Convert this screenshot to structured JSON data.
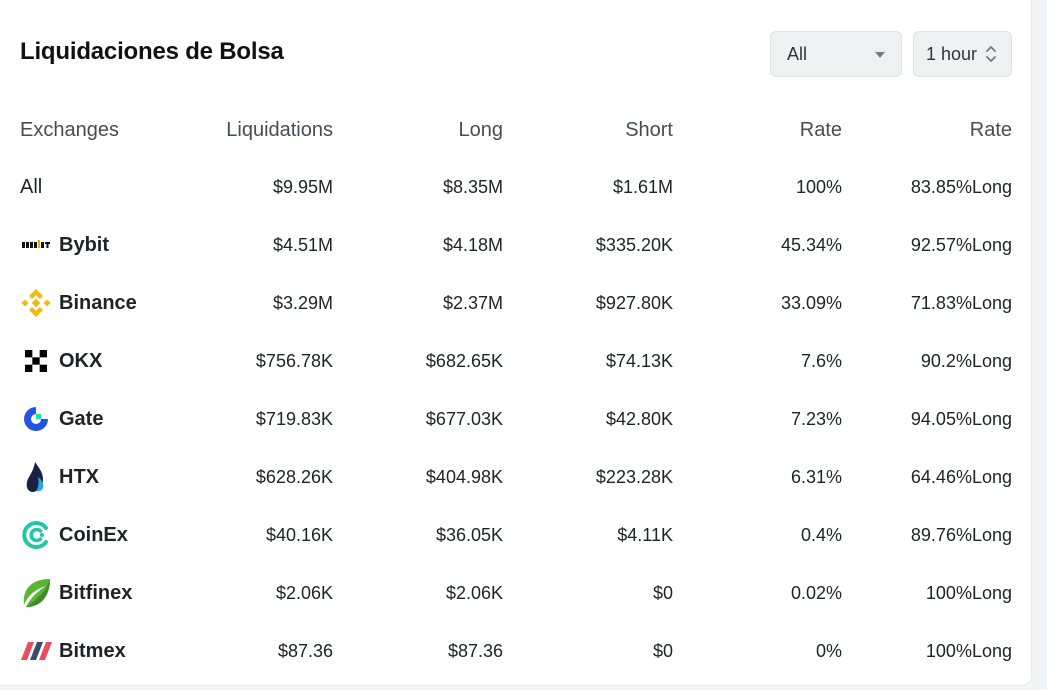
{
  "header": {
    "title": "Liquidaciones de Bolsa",
    "exchange_filter": "All",
    "period_filter": "1 hour"
  },
  "table": {
    "columns": [
      "Exchanges",
      "Liquidations",
      "Long",
      "Short",
      "Rate",
      "Rate"
    ],
    "rows": [
      {
        "exchange": "All",
        "icon": "",
        "liquidations": "$9.95M",
        "long": "$8.35M",
        "short": "$1.61M",
        "rate": "100%",
        "long_rate": "83.85%Long"
      },
      {
        "exchange": "Bybit",
        "icon": "bybit-logo-icon",
        "liquidations": "$4.51M",
        "long": "$4.18M",
        "short": "$335.20K",
        "rate": "45.34%",
        "long_rate": "92.57%Long"
      },
      {
        "exchange": "Binance",
        "icon": "binance-logo-icon",
        "liquidations": "$3.29M",
        "long": "$2.37M",
        "short": "$927.80K",
        "rate": "33.09%",
        "long_rate": "71.83%Long"
      },
      {
        "exchange": "OKX",
        "icon": "okx-logo-icon",
        "liquidations": "$756.78K",
        "long": "$682.65K",
        "short": "$74.13K",
        "rate": "7.6%",
        "long_rate": "90.2%Long"
      },
      {
        "exchange": "Gate",
        "icon": "gate-logo-icon",
        "liquidations": "$719.83K",
        "long": "$677.03K",
        "short": "$42.80K",
        "rate": "7.23%",
        "long_rate": "94.05%Long"
      },
      {
        "exchange": "HTX",
        "icon": "htx-logo-icon",
        "liquidations": "$628.26K",
        "long": "$404.98K",
        "short": "$223.28K",
        "rate": "6.31%",
        "long_rate": "64.46%Long"
      },
      {
        "exchange": "CoinEx",
        "icon": "coinex-logo-icon",
        "liquidations": "$40.16K",
        "long": "$36.05K",
        "short": "$4.11K",
        "rate": "0.4%",
        "long_rate": "89.76%Long"
      },
      {
        "exchange": "Bitfinex",
        "icon": "bitfinex-logo-icon",
        "liquidations": "$2.06K",
        "long": "$2.06K",
        "short": "$0",
        "rate": "0.02%",
        "long_rate": "100%Long"
      },
      {
        "exchange": "Bitmex",
        "icon": "bitmex-logo-icon",
        "liquidations": "$87.36",
        "long": "$87.36",
        "short": "$0",
        "rate": "0%",
        "long_rate": "100%Long"
      }
    ]
  },
  "colors": {
    "long_rate": "#2ea78a",
    "binance": "#f0b90b",
    "gate": "#2354e6",
    "coinex": "#1fc7a5",
    "bitfinex": "#5bb434",
    "bitmex": "#e94d5a"
  }
}
